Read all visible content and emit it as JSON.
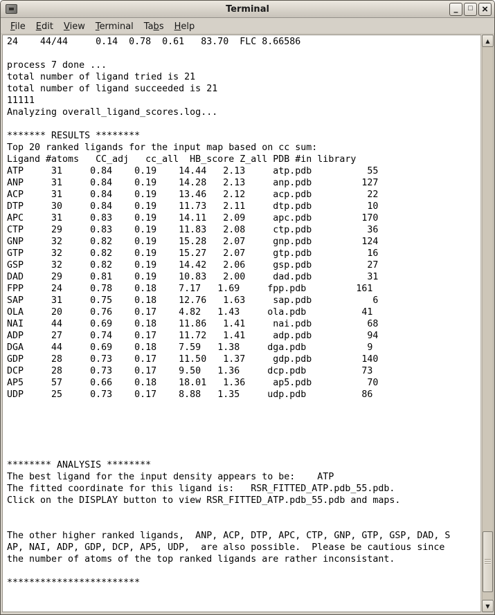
{
  "window": {
    "title": "Terminal",
    "controls": {
      "minimize_glyph": "–",
      "maximize_glyph": "□",
      "close_glyph": "×"
    }
  },
  "menu": {
    "items": [
      {
        "label": "File",
        "underline_index": 0
      },
      {
        "label": "Edit",
        "underline_index": 0
      },
      {
        "label": "View",
        "underline_index": 0
      },
      {
        "label": "Terminal",
        "underline_index": 0
      },
      {
        "label": "Tabs",
        "underline_index": 2
      },
      {
        "label": "Help",
        "underline_index": 0
      }
    ]
  },
  "scrollbar": {
    "up_glyph": "▲",
    "down_glyph": "▼"
  },
  "terminal": {
    "lines": [
      "24    44/44     0.14  0.78  0.61   83.70  FLC 8.66586",
      "",
      "process 7 done ...",
      "total number of ligand tried is 21",
      "total number of ligand succeeded is 21",
      "11111",
      "Analyzing overall_ligand_scores.log...",
      "",
      "******* RESULTS ********",
      "Top 20 ranked ligands for the input map based on cc sum:",
      "Ligand #atoms   CC_adj   cc_all  HB_score Z_all PDB #in library",
      "ATP     31     0.84    0.19    14.44   2.13     atp.pdb          55",
      "ANP     31     0.84    0.19    14.28   2.13     anp.pdb         127",
      "ACP     31     0.84    0.19    13.46   2.12     acp.pdb          22",
      "DTP     30     0.84    0.19    11.73   2.11     dtp.pdb          10",
      "APC     31     0.83    0.19    14.11   2.09     apc.pdb         170",
      "CTP     29     0.83    0.19    11.83   2.08     ctp.pdb          36",
      "GNP     32     0.82    0.19    15.28   2.07     gnp.pdb         124",
      "GTP     32     0.82    0.19    15.27   2.07     gtp.pdb          16",
      "GSP     32     0.82    0.19    14.42   2.06     gsp.pdb          27",
      "DAD     29     0.81    0.19    10.83   2.00     dad.pdb          31",
      "FPP     24     0.78    0.18    7.17   1.69     fpp.pdb         161",
      "SAP     31     0.75    0.18    12.76   1.63     sap.pdb           6",
      "OLA     20     0.76    0.17    4.82   1.43     ola.pdb          41",
      "NAI     44     0.69    0.18    11.86   1.41     nai.pdb          68",
      "ADP     27     0.74    0.17    11.72   1.41     adp.pdb          94",
      "DGA     44     0.69    0.18    7.59   1.38     dga.pdb           9",
      "GDP     28     0.73    0.17    11.50   1.37     gdp.pdb         140",
      "DCP     28     0.73    0.17    9.50   1.36     dcp.pdb          73",
      "AP5     57     0.66    0.18    18.01   1.36     ap5.pdb          70",
      "UDP     25     0.73    0.17    8.88   1.35     udp.pdb          86",
      "",
      "",
      "",
      "",
      "",
      "******** ANALYSIS ********",
      "The best ligand for the input density appears to be:    ATP",
      "The fitted coordinate for this ligand is:   RSR_FITTED_ATP.pdb_55.pdb.",
      "Click on the DISPLAY button to view RSR_FITTED_ATP.pdb_55.pdb and maps.",
      "",
      "",
      "The other higher ranked ligands,  ANP, ACP, DTP, APC, CTP, GNP, GTP, GSP, DAD, S",
      "AP, NAI, ADP, GDP, DCP, AP5, UDP,  are also possible.  Please be cautious since",
      "the number of atoms of the top ranked ligands are rather inconsistant.",
      "",
      "************************"
    ]
  },
  "results_table": {
    "type": "table",
    "title": "Top 20 ranked ligands for the input map based on cc sum:",
    "columns": [
      "Ligand",
      "#atoms",
      "CC_adj",
      "cc_all",
      "HB_score",
      "Z_all",
      "PDB",
      "#in library"
    ],
    "rows": [
      [
        "ATP",
        31,
        0.84,
        0.19,
        14.44,
        2.13,
        "atp.pdb",
        55
      ],
      [
        "ANP",
        31,
        0.84,
        0.19,
        14.28,
        2.13,
        "anp.pdb",
        127
      ],
      [
        "ACP",
        31,
        0.84,
        0.19,
        13.46,
        2.12,
        "acp.pdb",
        22
      ],
      [
        "DTP",
        30,
        0.84,
        0.19,
        11.73,
        2.11,
        "dtp.pdb",
        10
      ],
      [
        "APC",
        31,
        0.83,
        0.19,
        14.11,
        2.09,
        "apc.pdb",
        170
      ],
      [
        "CTP",
        29,
        0.83,
        0.19,
        11.83,
        2.08,
        "ctp.pdb",
        36
      ],
      [
        "GNP",
        32,
        0.82,
        0.19,
        15.28,
        2.07,
        "gnp.pdb",
        124
      ],
      [
        "GTP",
        32,
        0.82,
        0.19,
        15.27,
        2.07,
        "gtp.pdb",
        16
      ],
      [
        "GSP",
        32,
        0.82,
        0.19,
        14.42,
        2.06,
        "gsp.pdb",
        27
      ],
      [
        "DAD",
        29,
        0.81,
        0.19,
        10.83,
        2.0,
        "dad.pdb",
        31
      ],
      [
        "FPP",
        24,
        0.78,
        0.18,
        7.17,
        1.69,
        "fpp.pdb",
        161
      ],
      [
        "SAP",
        31,
        0.75,
        0.18,
        12.76,
        1.63,
        "sap.pdb",
        6
      ],
      [
        "OLA",
        20,
        0.76,
        0.17,
        4.82,
        1.43,
        "ola.pdb",
        41
      ],
      [
        "NAI",
        44,
        0.69,
        0.18,
        11.86,
        1.41,
        "nai.pdb",
        68
      ],
      [
        "ADP",
        27,
        0.74,
        0.17,
        11.72,
        1.41,
        "adp.pdb",
        94
      ],
      [
        "DGA",
        44,
        0.69,
        0.18,
        7.59,
        1.38,
        "dga.pdb",
        9
      ],
      [
        "GDP",
        28,
        0.73,
        0.17,
        11.5,
        1.37,
        "gdp.pdb",
        140
      ],
      [
        "DCP",
        28,
        0.73,
        0.17,
        9.5,
        1.36,
        "dcp.pdb",
        73
      ],
      [
        "AP5",
        57,
        0.66,
        0.18,
        18.01,
        1.36,
        "ap5.pdb",
        70
      ],
      [
        "UDP",
        25,
        0.73,
        0.17,
        8.88,
        1.35,
        "udp.pdb",
        86
      ]
    ]
  },
  "analysis": {
    "best_ligand": "ATP",
    "fitted_coordinate": "RSR_FITTED_ATP.pdb_55.pdb"
  },
  "status_line": {
    "values": [
      "24",
      "44/44",
      "0.14",
      "0.78",
      "0.61",
      "83.70",
      "FLC 8.66586"
    ]
  }
}
